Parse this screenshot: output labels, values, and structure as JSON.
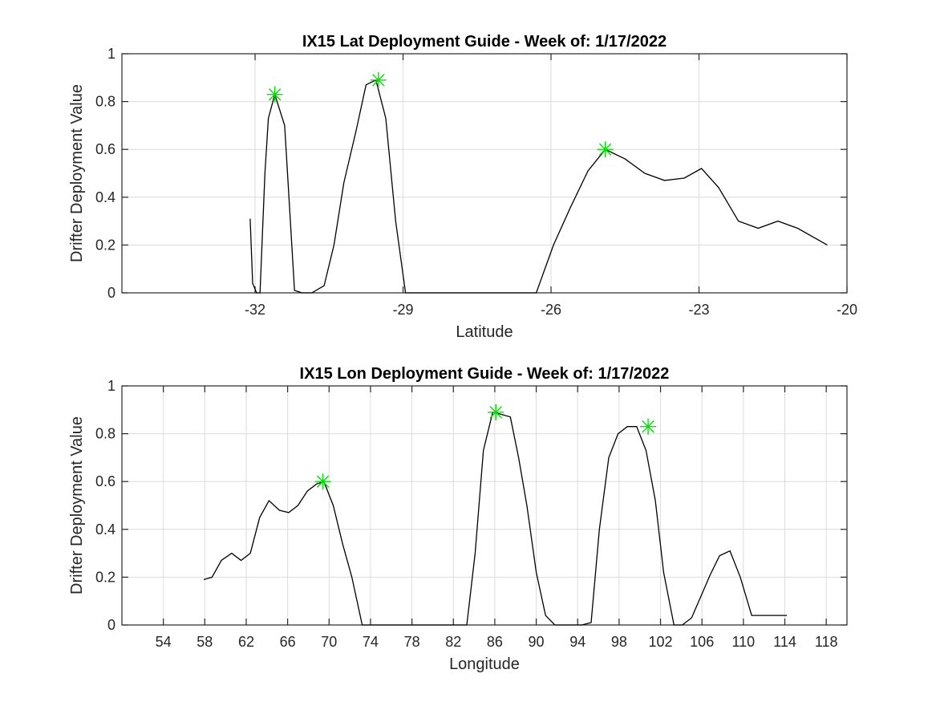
{
  "chart_data": [
    {
      "type": "line",
      "title": "IX15 Lat Deployment Guide - Week of: 1/17/2022",
      "xlabel": "Latitude",
      "ylabel": "Drifter Deployment Value",
      "xlim": [
        -34.7,
        -20
      ],
      "ylim": [
        0,
        1
      ],
      "xticks": [
        -32,
        -29,
        -26,
        -23,
        -20
      ],
      "xtick_labels": [
        "-32",
        "-29",
        "-26",
        "-23",
        "-20"
      ],
      "yticks": [
        0,
        0.2,
        0.4,
        0.6,
        0.8,
        1
      ],
      "ytick_labels": [
        "0",
        "0.2",
        "0.4",
        "0.6",
        "0.8",
        "1"
      ],
      "grid": true,
      "line_color": "#000000",
      "marker_color": "#00e000",
      "x": [
        -32.1,
        -32.05,
        -31.97,
        -31.9,
        -31.8,
        -31.73,
        -31.6,
        -31.4,
        -31.2,
        -31.05,
        -30.85,
        -30.6,
        -30.4,
        -30.2,
        -29.95,
        -29.75,
        -29.55,
        -29.35,
        -29.15,
        -28.95,
        -28.75,
        -26.6,
        -26.3,
        -25.95,
        -25.6,
        -25.25,
        -24.9,
        -24.5,
        -24.1,
        -23.7,
        -23.3,
        -22.95,
        -22.6,
        -22.2,
        -21.8,
        -21.4,
        -21.0,
        -20.4
      ],
      "y": [
        0.31,
        0.04,
        0.0,
        0.0,
        0.5,
        0.73,
        0.83,
        0.7,
        0.01,
        0.0,
        0.0,
        0.03,
        0.2,
        0.46,
        0.68,
        0.87,
        0.89,
        0.73,
        0.3,
        0.0,
        0.0,
        0.0,
        0.0,
        0.2,
        0.36,
        0.51,
        0.6,
        0.56,
        0.5,
        0.47,
        0.48,
        0.52,
        0.44,
        0.3,
        0.27,
        0.3,
        0.27,
        0.2
      ],
      "peaks": [
        {
          "x": -31.6,
          "y": 0.83
        },
        {
          "x": -29.5,
          "y": 0.89
        },
        {
          "x": -24.9,
          "y": 0.6
        }
      ]
    },
    {
      "type": "line",
      "title": "IX15 Lon Deployment Guide - Week of: 1/17/2022",
      "xlabel": "Longitude",
      "ylabel": "Drifter Deployment Value",
      "xlim": [
        50,
        120
      ],
      "ylim": [
        0,
        1
      ],
      "xticks": [
        54,
        58,
        62,
        66,
        70,
        74,
        78,
        82,
        86,
        90,
        94,
        98,
        102,
        106,
        110,
        114,
        118
      ],
      "xtick_labels": [
        "54",
        "58",
        "62",
        "66",
        "70",
        "74",
        "78",
        "82",
        "86",
        "90",
        "94",
        "98",
        "102",
        "106",
        "110",
        "114",
        "118"
      ],
      "yticks": [
        0,
        0.2,
        0.4,
        0.6,
        0.8,
        1
      ],
      "ytick_labels": [
        "0",
        "0.2",
        "0.4",
        "0.6",
        "0.8",
        "1"
      ],
      "grid": true,
      "line_color": "#000000",
      "marker_color": "#00e000",
      "x": [
        57.9,
        58.7,
        59.6,
        60.6,
        61.5,
        62.4,
        63.3,
        64.2,
        65.2,
        66.1,
        67.0,
        67.9,
        68.8,
        69.5,
        70.4,
        71.3,
        72.2,
        73.2,
        74.1,
        83.3,
        84.1,
        84.9,
        85.8,
        86.7,
        87.5,
        88.3,
        89.1,
        90.0,
        90.9,
        91.8,
        92.7,
        93.5,
        94.4,
        95.3,
        96.1,
        97.0,
        97.9,
        98.8,
        99.7,
        100.6,
        101.5,
        102.3,
        103.3,
        104.1,
        105.0,
        105.9,
        106.8,
        107.7,
        108.7,
        109.7,
        110.8,
        111.9,
        113.0,
        114.2
      ],
      "y": [
        0.19,
        0.2,
        0.27,
        0.3,
        0.27,
        0.3,
        0.45,
        0.52,
        0.48,
        0.47,
        0.5,
        0.56,
        0.59,
        0.6,
        0.5,
        0.34,
        0.2,
        0.0,
        0.0,
        0.0,
        0.3,
        0.73,
        0.89,
        0.88,
        0.87,
        0.7,
        0.5,
        0.22,
        0.04,
        0.0,
        0.0,
        0.0,
        0.0,
        0.01,
        0.4,
        0.7,
        0.8,
        0.83,
        0.83,
        0.73,
        0.52,
        0.22,
        0.0,
        0.0,
        0.03,
        0.12,
        0.21,
        0.29,
        0.31,
        0.2,
        0.04,
        0.04,
        0.04,
        0.04
      ],
      "peaks": [
        {
          "x": 69.4,
          "y": 0.6
        },
        {
          "x": 86.1,
          "y": 0.89
        },
        {
          "x": 100.8,
          "y": 0.83
        }
      ]
    }
  ]
}
